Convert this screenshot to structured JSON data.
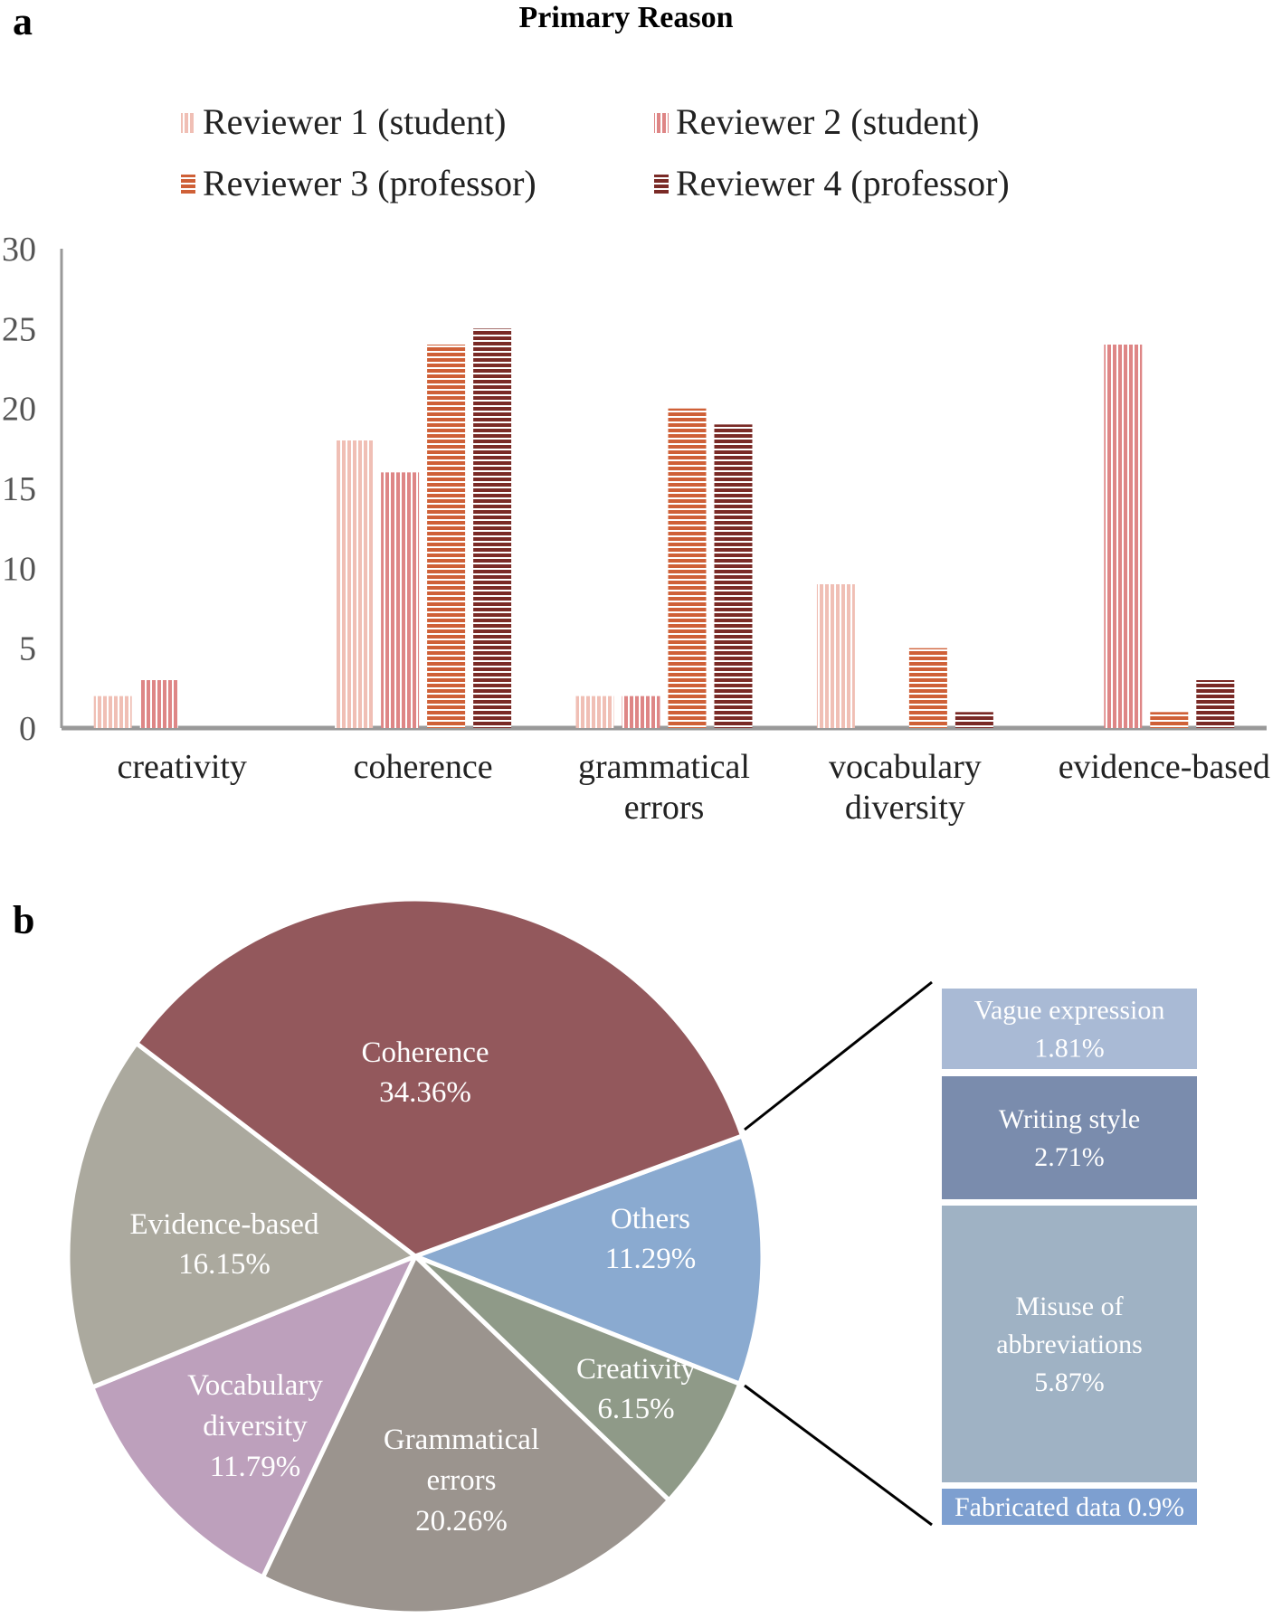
{
  "panels": {
    "a": "a",
    "b": "b"
  },
  "chart_data": [
    {
      "type": "bar",
      "title": "Primary Reason",
      "categories": [
        [
          "creativity"
        ],
        [
          "coherence"
        ],
        [
          "grammatical",
          "errors"
        ],
        [
          "vocabulary",
          "diversity"
        ],
        [
          "evidence-based"
        ]
      ],
      "ylim": [
        0,
        30
      ],
      "yticks": [
        "0",
        "5",
        "10",
        "15",
        "20",
        "25",
        "30"
      ],
      "grid": false,
      "legend": "top",
      "series": [
        {
          "name": "Reviewer 1 (student)",
          "values": [
            2,
            18,
            2,
            9,
            0
          ],
          "color": "#f0bfb5",
          "pattern": "vertical"
        },
        {
          "name": "Reviewer 2 (student)",
          "values": [
            3,
            16,
            2,
            0,
            24
          ],
          "color": "#de8686",
          "pattern": "vertical"
        },
        {
          "name": "Reviewer 3 (professor)",
          "values": [
            0,
            24,
            20,
            5,
            1
          ],
          "color": "#cf6037",
          "pattern": "horizontal"
        },
        {
          "name": "Reviewer 4 (professor)",
          "values": [
            0,
            25,
            19,
            1,
            3
          ],
          "color": "#7a2a26",
          "pattern": "horizontal"
        }
      ]
    },
    {
      "type": "pie",
      "slices": [
        {
          "label": [
            "Others",
            "11.29%"
          ],
          "value": 11.29,
          "color": "#8aaad0"
        },
        {
          "label": [
            "Creativity",
            "6.15%"
          ],
          "value": 6.15,
          "color": "#8f9a88"
        },
        {
          "label": [
            "Grammatical",
            "errors",
            "20.26%"
          ],
          "value": 20.26,
          "color": "#9b948e"
        },
        {
          "label": [
            "Vocabulary",
            "diversity",
            "11.79%"
          ],
          "value": 11.79,
          "color": "#bda0bc"
        },
        {
          "label": [
            "Evidence-based",
            "16.15%"
          ],
          "value": 16.15,
          "color": "#aba99e"
        },
        {
          "label": [
            "Coherence",
            "34.36%"
          ],
          "value": 34.36,
          "color": "#93585c"
        }
      ],
      "breakdown_of": "Others",
      "breakdown": [
        {
          "label": [
            "Vague expression",
            "1.81%"
          ],
          "value": 1.81,
          "color": "#a9bad5"
        },
        {
          "label": [
            "Writing style",
            "2.71%"
          ],
          "value": 2.71,
          "color": "#7a8cad"
        },
        {
          "label": [
            "Misuse of",
            "abbreviations",
            "5.87%"
          ],
          "value": 5.87,
          "color": "#9fb2c4"
        },
        {
          "label": [
            "Fabricated data 0.9%"
          ],
          "value": 0.9,
          "color": "#7d9fd0"
        }
      ]
    }
  ]
}
